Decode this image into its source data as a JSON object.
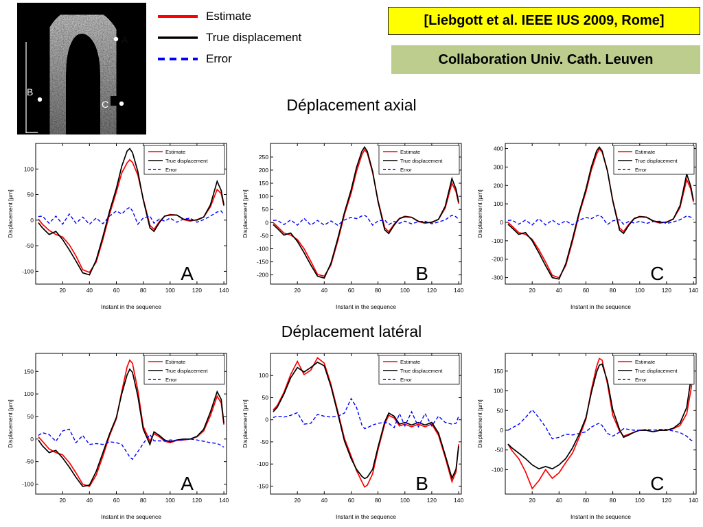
{
  "header": {
    "citation": "[Liebgott et al. IEEE IUS 2009, Rome]",
    "collaboration": "Collaboration Univ. Cath. Leuven",
    "legend": [
      {
        "label": "Estimate",
        "color": "#ff0000",
        "dash": false
      },
      {
        "label": "True displacement",
        "color": "#000000",
        "dash": false
      },
      {
        "label": "Error",
        "color": "#0000ff",
        "dash": true
      }
    ]
  },
  "ultrasound": {
    "points": [
      {
        "label": "A"
      },
      {
        "label": "B"
      },
      {
        "label": "C"
      }
    ]
  },
  "sections": [
    {
      "title": "Déplacement axial"
    },
    {
      "title": "Déplacement latéral"
    }
  ],
  "chart_data": [
    {
      "type": "line",
      "section": "Déplacement axial",
      "point_label": "A",
      "xlabel": "Instant in the sequence",
      "ylabel": "Displacement [µm]",
      "xlim": [
        0,
        142
      ],
      "ylim": [
        -125,
        150
      ],
      "xticks": [
        20,
        40,
        60,
        80,
        100,
        120,
        140
      ],
      "yticks": [
        -100,
        -50,
        0,
        50,
        100
      ],
      "x": [
        2,
        5,
        10,
        15,
        20,
        25,
        30,
        35,
        40,
        45,
        50,
        55,
        60,
        64,
        68,
        70,
        72,
        76,
        80,
        85,
        88,
        92,
        96,
        100,
        105,
        110,
        115,
        120,
        125,
        130,
        135,
        138,
        140
      ],
      "series": [
        {
          "name": "Estimate",
          "color": "#ff0000",
          "dash": false,
          "values": [
            2,
            -8,
            -20,
            -28,
            -33,
            -48,
            -70,
            -97,
            -102,
            -82,
            -38,
            12,
            55,
            92,
            112,
            118,
            113,
            88,
            42,
            -10,
            -18,
            -3,
            8,
            11,
            10,
            1,
            -2,
            1,
            6,
            26,
            60,
            52,
            28
          ]
        },
        {
          "name": "True displacement",
          "color": "#000000",
          "dash": false,
          "values": [
            -5,
            -15,
            -28,
            -22,
            -38,
            -58,
            -80,
            -103,
            -107,
            -78,
            -32,
            18,
            62,
            105,
            135,
            140,
            132,
            95,
            40,
            -15,
            -22,
            -5,
            8,
            10,
            10,
            2,
            0,
            0,
            6,
            30,
            76,
            58,
            30
          ]
        },
        {
          "name": "Error",
          "color": "#0000ff",
          "dash": true,
          "values": [
            7,
            8,
            -6,
            8,
            -8,
            12,
            -6,
            6,
            -8,
            4,
            -7,
            8,
            18,
            12,
            22,
            25,
            18,
            -8,
            4,
            8,
            -6,
            2,
            -2,
            4,
            -4,
            2,
            4,
            -4,
            1,
            8,
            16,
            18,
            10
          ]
        }
      ]
    },
    {
      "type": "line",
      "section": "Déplacement axial",
      "point_label": "B",
      "xlabel": "Instant in the sequence",
      "ylabel": "Displacement [µm]",
      "xlim": [
        0,
        142
      ],
      "ylim": [
        -235,
        302
      ],
      "xticks": [
        20,
        40,
        60,
        80,
        100,
        120,
        140
      ],
      "yticks": [
        -200,
        -150,
        -100,
        -50,
        0,
        50,
        100,
        150,
        200,
        250
      ],
      "x": [
        2,
        5,
        10,
        15,
        20,
        25,
        30,
        35,
        40,
        45,
        50,
        55,
        60,
        64,
        68,
        70,
        72,
        76,
        80,
        85,
        88,
        92,
        96,
        100,
        105,
        110,
        115,
        120,
        125,
        130,
        135,
        138,
        140
      ],
      "series": [
        {
          "name": "Estimate",
          "color": "#ff0000",
          "dash": false,
          "values": [
            0,
            -15,
            -40,
            -48,
            -65,
            -100,
            -148,
            -198,
            -205,
            -162,
            -72,
            30,
            112,
            195,
            258,
            278,
            265,
            190,
            85,
            -20,
            -35,
            -6,
            16,
            24,
            20,
            4,
            -3,
            2,
            12,
            55,
            150,
            118,
            72
          ]
        },
        {
          "name": "True displacement",
          "color": "#000000",
          "dash": false,
          "values": [
            -8,
            -22,
            -48,
            -40,
            -72,
            -115,
            -162,
            -205,
            -212,
            -155,
            -62,
            38,
            125,
            210,
            272,
            288,
            272,
            195,
            80,
            -28,
            -42,
            -10,
            15,
            22,
            20,
            5,
            0,
            0,
            12,
            62,
            168,
            128,
            78
          ]
        },
        {
          "name": "Error",
          "color": "#0000ff",
          "dash": true,
          "values": [
            8,
            9,
            -8,
            10,
            -10,
            16,
            -10,
            8,
            -10,
            6,
            -10,
            10,
            20,
            15,
            25,
            28,
            20,
            -10,
            6,
            10,
            -8,
            4,
            -3,
            5,
            -5,
            3,
            5,
            -5,
            2,
            10,
            28,
            22,
            12
          ]
        }
      ]
    },
    {
      "type": "line",
      "section": "Déplacement axial",
      "point_label": "C",
      "xlabel": "Instant in the sequence",
      "ylabel": "Displacement [µm]",
      "xlim": [
        0,
        142
      ],
      "ylim": [
        -335,
        428
      ],
      "xticks": [
        20,
        40,
        60,
        80,
        100,
        120,
        140
      ],
      "yticks": [
        -300,
        -200,
        -100,
        0,
        100,
        200,
        300,
        400
      ],
      "x": [
        2,
        5,
        10,
        15,
        20,
        25,
        30,
        35,
        40,
        45,
        50,
        55,
        60,
        64,
        68,
        70,
        72,
        76,
        80,
        85,
        88,
        92,
        96,
        100,
        105,
        110,
        115,
        120,
        125,
        130,
        135,
        138,
        140
      ],
      "series": [
        {
          "name": "Estimate",
          "color": "#ff0000",
          "dash": false,
          "values": [
            0,
            -20,
            -55,
            -65,
            -92,
            -148,
            -215,
            -288,
            -300,
            -235,
            -105,
            45,
            165,
            282,
            370,
            398,
            382,
            278,
            120,
            -30,
            -50,
            -10,
            22,
            32,
            28,
            6,
            -4,
            2,
            18,
            80,
            232,
            180,
            110
          ]
        },
        {
          "name": "True displacement",
          "color": "#000000",
          "dash": false,
          "values": [
            -10,
            -30,
            -65,
            -55,
            -100,
            -165,
            -235,
            -300,
            -308,
            -225,
            -90,
            55,
            180,
            300,
            388,
            408,
            388,
            280,
            115,
            -42,
            -60,
            -15,
            20,
            30,
            28,
            8,
            0,
            0,
            18,
            90,
            262,
            195,
            118
          ]
        },
        {
          "name": "Error",
          "color": "#0000ff",
          "dash": true,
          "values": [
            10,
            12,
            -10,
            12,
            -14,
            20,
            -14,
            12,
            -12,
            8,
            -14,
            12,
            26,
            20,
            35,
            40,
            28,
            -12,
            8,
            14,
            -10,
            5,
            -4,
            6,
            -6,
            4,
            6,
            -6,
            2,
            14,
            35,
            28,
            15
          ]
        }
      ]
    },
    {
      "type": "line",
      "section": "Déplacement latéral",
      "point_label": "A",
      "xlabel": "Instant in the sequence",
      "ylabel": "Displacement [µm]",
      "xlim": [
        0,
        142
      ],
      "ylim": [
        -122,
        190
      ],
      "xticks": [
        20,
        40,
        60,
        80,
        100,
        120,
        140
      ],
      "yticks": [
        -100,
        -50,
        0,
        50,
        100,
        150
      ],
      "x": [
        2,
        5,
        10,
        15,
        20,
        25,
        30,
        35,
        40,
        45,
        50,
        55,
        60,
        64,
        68,
        70,
        72,
        76,
        80,
        85,
        88,
        92,
        96,
        100,
        105,
        110,
        115,
        120,
        125,
        130,
        135,
        138,
        140
      ],
      "series": [
        {
          "name": "Estimate",
          "color": "#ff0000",
          "dash": false,
          "values": [
            5,
            -5,
            -22,
            -30,
            -35,
            -52,
            -75,
            -100,
            -105,
            -80,
            -38,
            8,
            45,
            105,
            160,
            175,
            168,
            108,
            28,
            -5,
            12,
            5,
            -5,
            -8,
            -3,
            -2,
            0,
            5,
            18,
            52,
            95,
            80,
            32
          ]
        },
        {
          "name": "True displacement",
          "color": "#000000",
          "dash": false,
          "values": [
            -2,
            -15,
            -30,
            -25,
            -42,
            -62,
            -85,
            -105,
            -102,
            -72,
            -30,
            12,
            48,
            100,
            142,
            155,
            148,
            95,
            22,
            -12,
            16,
            8,
            -2,
            -6,
            -2,
            0,
            0,
            6,
            22,
            60,
            105,
            88,
            35
          ]
        },
        {
          "name": "Error",
          "color": "#0000ff",
          "dash": true,
          "values": [
            8,
            14,
            10,
            -5,
            18,
            22,
            -8,
            8,
            -12,
            -10,
            -12,
            -6,
            -8,
            -12,
            -30,
            -40,
            -45,
            -28,
            -10,
            10,
            -4,
            -4,
            -4,
            -2,
            -3,
            -2,
            0,
            -2,
            -5,
            -8,
            -10,
            -14,
            -18
          ]
        }
      ]
    },
    {
      "type": "line",
      "section": "Déplacement latéral",
      "point_label": "B",
      "xlabel": "Instant in the sequence",
      "ylabel": "Displacement [µm]",
      "xlim": [
        0,
        142
      ],
      "ylim": [
        -168,
        150
      ],
      "xticks": [
        20,
        40,
        60,
        80,
        100,
        120,
        140
      ],
      "yticks": [
        -150,
        -100,
        -50,
        0,
        50,
        100
      ],
      "x": [
        2,
        5,
        10,
        15,
        20,
        25,
        30,
        35,
        40,
        45,
        50,
        55,
        60,
        64,
        68,
        70,
        72,
        76,
        80,
        85,
        88,
        92,
        96,
        100,
        105,
        110,
        115,
        120,
        125,
        130,
        135,
        138,
        140
      ],
      "series": [
        {
          "name": "Estimate",
          "color": "#ff0000",
          "dash": false,
          "values": [
            22,
            32,
            62,
            102,
            132,
            102,
            112,
            140,
            128,
            80,
            20,
            -42,
            -82,
            -115,
            -140,
            -152,
            -148,
            -122,
            -68,
            -10,
            10,
            4,
            -14,
            -10,
            -16,
            -10,
            -16,
            -10,
            -35,
            -85,
            -140,
            -118,
            -55
          ]
        },
        {
          "name": "True displacement",
          "color": "#000000",
          "dash": false,
          "values": [
            18,
            28,
            58,
            95,
            118,
            108,
            118,
            130,
            122,
            75,
            15,
            -48,
            -88,
            -112,
            -128,
            -133,
            -130,
            -112,
            -62,
            -5,
            15,
            8,
            -10,
            -6,
            -12,
            -6,
            -12,
            -6,
            -30,
            -80,
            -132,
            -112,
            -60
          ]
        },
        {
          "name": "Error",
          "color": "#0000ff",
          "dash": true,
          "values": [
            5,
            8,
            6,
            10,
            16,
            -10,
            -8,
            12,
            8,
            6,
            8,
            15,
            48,
            28,
            -12,
            -20,
            -18,
            -12,
            -8,
            -6,
            -8,
            -18,
            14,
            -14,
            18,
            -16,
            14,
            -14,
            8,
            -6,
            -10,
            -8,
            8
          ]
        }
      ]
    },
    {
      "type": "line",
      "section": "Déplacement latéral",
      "point_label": "C",
      "xlabel": "Instant in the sequence",
      "ylabel": "Displacement [µm]",
      "xlim": [
        0,
        142
      ],
      "ylim": [
        -162,
        195
      ],
      "xticks": [
        20,
        40,
        60,
        80,
        100,
        120,
        140
      ],
      "yticks": [
        -100,
        -50,
        0,
        50,
        100,
        150
      ],
      "x": [
        2,
        5,
        10,
        15,
        20,
        25,
        30,
        35,
        40,
        45,
        50,
        55,
        60,
        64,
        68,
        70,
        72,
        76,
        80,
        85,
        88,
        92,
        96,
        100,
        105,
        110,
        115,
        120,
        125,
        130,
        135,
        138,
        140
      ],
      "series": [
        {
          "name": "Estimate",
          "color": "#ff0000",
          "dash": false,
          "values": [
            -35,
            -52,
            -72,
            -105,
            -148,
            -128,
            -100,
            -122,
            -108,
            -82,
            -58,
            -18,
            28,
            102,
            162,
            182,
            178,
            118,
            38,
            -2,
            -15,
            -10,
            -5,
            0,
            0,
            -4,
            0,
            0,
            4,
            12,
            42,
            100,
            148
          ]
        },
        {
          "name": "True displacement",
          "color": "#000000",
          "dash": false,
          "values": [
            -35,
            -45,
            -58,
            -72,
            -88,
            -98,
            -92,
            -98,
            -88,
            -72,
            -45,
            -10,
            32,
            95,
            148,
            165,
            168,
            125,
            52,
            2,
            -18,
            -12,
            -5,
            0,
            0,
            -4,
            0,
            0,
            5,
            18,
            58,
            128,
            178
          ]
        },
        {
          "name": "Error",
          "color": "#0000ff",
          "dash": true,
          "values": [
            0,
            6,
            15,
            32,
            52,
            32,
            8,
            -22,
            -18,
            -10,
            -12,
            -8,
            -4,
            8,
            15,
            18,
            12,
            -8,
            -15,
            -5,
            4,
            2,
            0,
            0,
            2,
            0,
            2,
            2,
            -2,
            -6,
            -15,
            -25,
            -28
          ]
        }
      ]
    }
  ]
}
